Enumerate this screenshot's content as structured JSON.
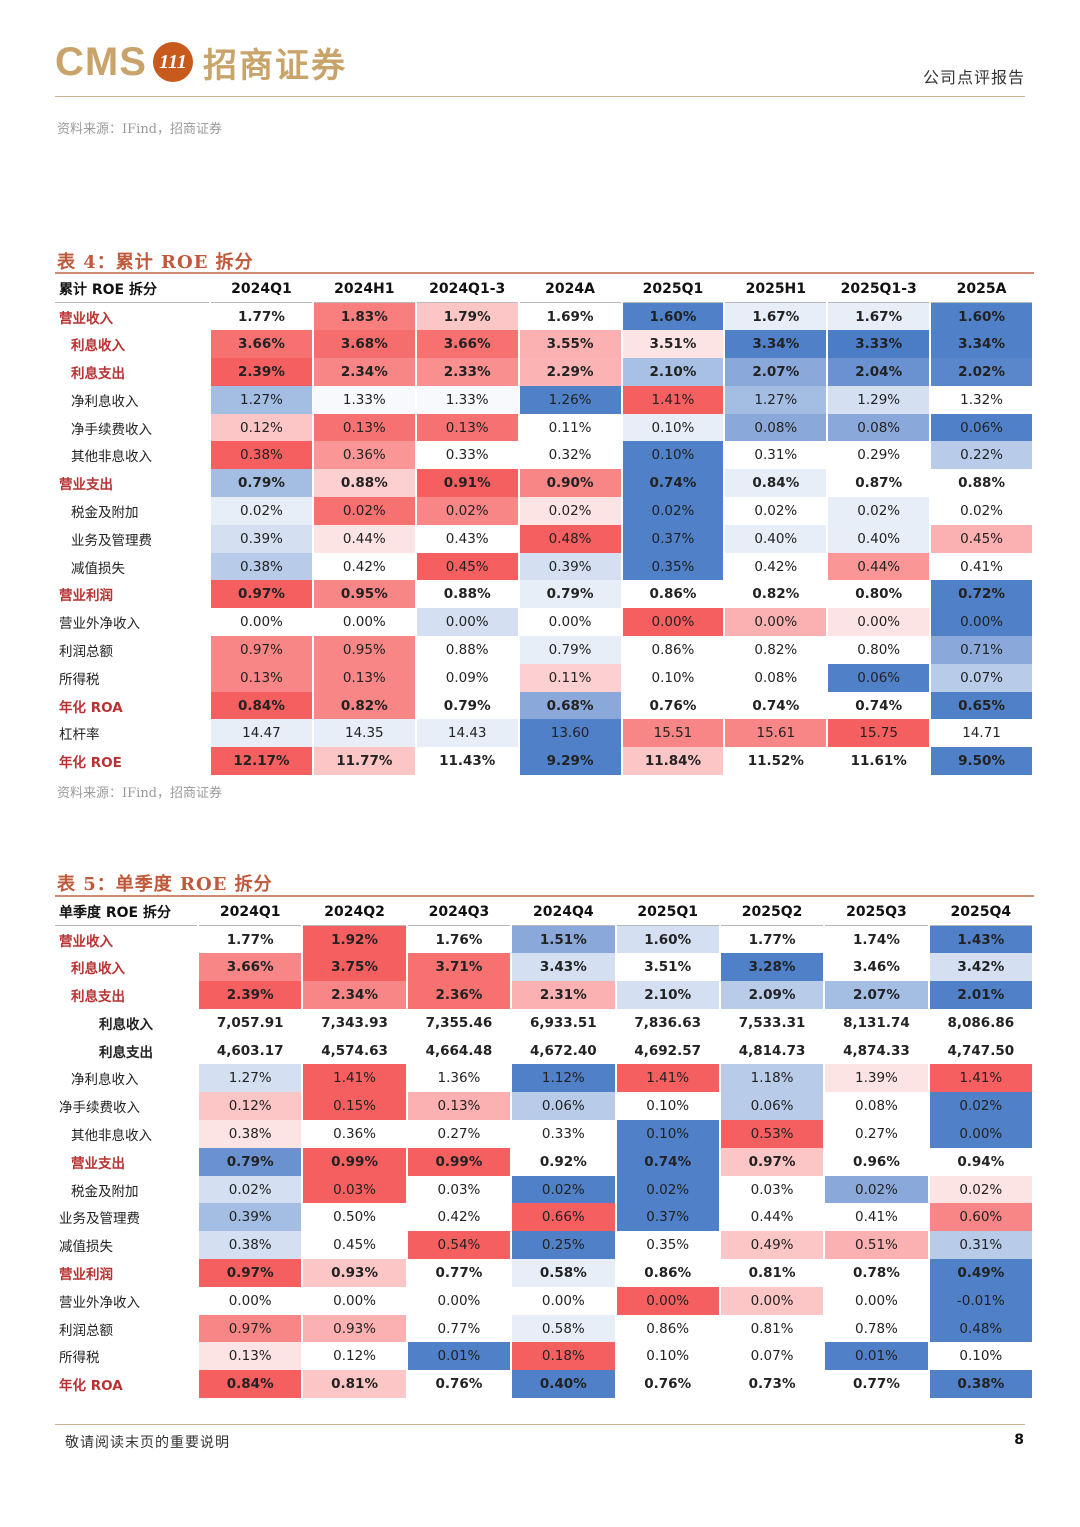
{
  "header": {
    "logo_cms": "CMS",
    "logo_emblem": "111",
    "logo_cn": "招商证券",
    "report_type": "公司点评报告"
  },
  "source_top": "资料来源：IFind，招商证券",
  "table4": {
    "title": "表 4：累计 ROE 拆分",
    "header_label": "累计 ROE 拆分",
    "columns": [
      "2024Q1",
      "2024H1",
      "2024Q1-3",
      "2024A",
      "2025Q1",
      "2025H1",
      "2025Q1-3",
      "2025A"
    ],
    "rows": [
      {
        "label": "营业收入",
        "indent": 0,
        "bold": true,
        "values": [
          "1.77%",
          "1.83%",
          "1.79%",
          "1.69%",
          "1.60%",
          "1.67%",
          "1.67%",
          "1.60%"
        ]
      },
      {
        "label": "利息收入",
        "indent": 1,
        "bold": true,
        "values": [
          "3.66%",
          "3.68%",
          "3.66%",
          "3.55%",
          "3.51%",
          "3.34%",
          "3.33%",
          "3.34%"
        ]
      },
      {
        "label": "利息支出",
        "indent": 1,
        "bold": true,
        "values": [
          "2.39%",
          "2.34%",
          "2.33%",
          "2.29%",
          "2.10%",
          "2.07%",
          "2.04%",
          "2.02%"
        ]
      },
      {
        "label": "净利息收入",
        "indent": 1,
        "bold": false,
        "values": [
          "1.27%",
          "1.33%",
          "1.33%",
          "1.26%",
          "1.41%",
          "1.27%",
          "1.29%",
          "1.32%"
        ]
      },
      {
        "label": "净手续费收入",
        "indent": 1,
        "bold": false,
        "values": [
          "0.12%",
          "0.13%",
          "0.13%",
          "0.11%",
          "0.10%",
          "0.08%",
          "0.08%",
          "0.06%"
        ]
      },
      {
        "label": "其他非息收入",
        "indent": 1,
        "bold": false,
        "values": [
          "0.38%",
          "0.36%",
          "0.33%",
          "0.32%",
          "0.10%",
          "0.31%",
          "0.29%",
          "0.22%"
        ]
      },
      {
        "label": "营业支出",
        "indent": 0,
        "bold": true,
        "values": [
          "0.79%",
          "0.88%",
          "0.91%",
          "0.90%",
          "0.74%",
          "0.84%",
          "0.87%",
          "0.88%"
        ]
      },
      {
        "label": "税金及附加",
        "indent": 1,
        "bold": false,
        "values": [
          "0.02%",
          "0.02%",
          "0.02%",
          "0.02%",
          "0.02%",
          "0.02%",
          "0.02%",
          "0.02%"
        ]
      },
      {
        "label": "业务及管理费",
        "indent": 1,
        "bold": false,
        "values": [
          "0.39%",
          "0.44%",
          "0.43%",
          "0.48%",
          "0.37%",
          "0.40%",
          "0.40%",
          "0.45%"
        ]
      },
      {
        "label": "减值损失",
        "indent": 1,
        "bold": false,
        "values": [
          "0.38%",
          "0.42%",
          "0.45%",
          "0.39%",
          "0.35%",
          "0.42%",
          "0.44%",
          "0.41%"
        ]
      },
      {
        "label": "营业利润",
        "indent": 0,
        "bold": true,
        "values": [
          "0.97%",
          "0.95%",
          "0.88%",
          "0.79%",
          "0.86%",
          "0.82%",
          "0.80%",
          "0.72%"
        ]
      },
      {
        "label": "营业外净收入",
        "indent": 0,
        "bold": false,
        "values": [
          "0.00%",
          "0.00%",
          "0.00%",
          "0.00%",
          "0.00%",
          "0.00%",
          "0.00%",
          "0.00%"
        ]
      },
      {
        "label": "利润总额",
        "indent": 0,
        "bold": false,
        "values": [
          "0.97%",
          "0.95%",
          "0.88%",
          "0.79%",
          "0.86%",
          "0.82%",
          "0.80%",
          "0.71%"
        ]
      },
      {
        "label": "所得税",
        "indent": 0,
        "bold": false,
        "values": [
          "0.13%",
          "0.13%",
          "0.09%",
          "0.11%",
          "0.10%",
          "0.08%",
          "0.06%",
          "0.07%"
        ]
      },
      {
        "label": "年化 ROA",
        "indent": 0,
        "bold": true,
        "values": [
          "0.84%",
          "0.82%",
          "0.79%",
          "0.68%",
          "0.76%",
          "0.74%",
          "0.74%",
          "0.65%"
        ]
      },
      {
        "label": "杠杆率",
        "indent": 0,
        "bold": false,
        "values": [
          "14.47",
          "14.35",
          "14.43",
          "13.60",
          "15.51",
          "15.61",
          "15.75",
          "14.71"
        ]
      },
      {
        "label": "年化 ROE",
        "indent": 0,
        "bold": true,
        "values": [
          "12.17%",
          "11.77%",
          "11.43%",
          "9.29%",
          "11.84%",
          "11.52%",
          "11.61%",
          "9.50%"
        ]
      }
    ],
    "colors": [
      [
        "#ffffff",
        "#f97f7f",
        "#fcc6c6",
        "#ffffff",
        "#4f80c8",
        "#e7eef8",
        "#e7eef8",
        "#4f80c8"
      ],
      [
        "#f77171",
        "#f66d6d",
        "#f77171",
        "#fbb1b1",
        "#fde4e4",
        "#4f80c8",
        "#4b7dc7",
        "#4f80c8"
      ],
      [
        "#f65f5f",
        "#f98686",
        "#f98f8f",
        "#fcb3b3",
        "#a8c0e4",
        "#8aa9da",
        "#6b92d0",
        "#5a86cb"
      ],
      [
        "#a4bde3",
        "#f7f9fd",
        "#f7f9fd",
        "#4f80c8",
        "#f65f5f",
        "#a4bde3",
        "#d4e0f2",
        "#ffffff"
      ],
      [
        "#fcc6c6",
        "#f67272",
        "#f67272",
        "#ffffff",
        "#e7eef8",
        "#8aa9da",
        "#8aa9da",
        "#4f80c8"
      ],
      [
        "#f65f5f",
        "#fa9696",
        "#ffffff",
        "#ffffff",
        "#4f80c8",
        "#ffffff",
        "#ffffff",
        "#b8cbe9"
      ],
      [
        "#a4bde3",
        "#fcd0d0",
        "#f65f5f",
        "#f98686",
        "#4f80c8",
        "#e7eef8",
        "#ffffff",
        "#ffffff"
      ],
      [
        "#e7eef8",
        "#f77171",
        "#f98686",
        "#fde4e4",
        "#4f80c8",
        "#ffffff",
        "#e7eef8",
        "#ffffff"
      ],
      [
        "#d4e0f2",
        "#fde4e4",
        "#ffffff",
        "#f65f5f",
        "#4f80c8",
        "#e7eef8",
        "#e7eef8",
        "#fbb1b1"
      ],
      [
        "#b8cbe9",
        "#ffffff",
        "#f65f5f",
        "#d4e0f2",
        "#4f80c8",
        "#ffffff",
        "#fa9696",
        "#ffffff"
      ],
      [
        "#f65f5f",
        "#f98686",
        "#ffffff",
        "#e7eef8",
        "#ffffff",
        "#ffffff",
        "#ffffff",
        "#4f80c8"
      ],
      [
        "#ffffff",
        "#ffffff",
        "#d4e0f2",
        "#ffffff",
        "#f65f5f",
        "#fbb1b1",
        "#fde4e4",
        "#4f80c8"
      ],
      [
        "#f98686",
        "#f98686",
        "#ffffff",
        "#e7eef8",
        "#ffffff",
        "#ffffff",
        "#ffffff",
        "#8aa9da"
      ],
      [
        "#f98686",
        "#f98686",
        "#ffffff",
        "#fcd0d0",
        "#ffffff",
        "#ffffff",
        "#4f80c8",
        "#b8cbe9"
      ],
      [
        "#f65f5f",
        "#f98686",
        "#ffffff",
        "#8aa9da",
        "#ffffff",
        "#ffffff",
        "#ffffff",
        "#4f80c8"
      ],
      [
        "#e7eef8",
        "#e7eef8",
        "#e7eef8",
        "#4f80c8",
        "#f98686",
        "#f98686",
        "#f65f5f",
        "#ffffff"
      ],
      [
        "#f65f5f",
        "#fcc6c6",
        "#ffffff",
        "#4f80c8",
        "#fcc6c6",
        "#ffffff",
        "#ffffff",
        "#4f80c8"
      ]
    ]
  },
  "source_mid": "资料来源：IFind，招商证券",
  "table5": {
    "title": "表 5：单季度 ROE 拆分",
    "header_label": "单季度 ROE 拆分",
    "columns": [
      "2024Q1",
      "2024Q2",
      "2024Q3",
      "2024Q4",
      "2025Q1",
      "2025Q2",
      "2025Q3",
      "2025Q4"
    ],
    "rows": [
      {
        "label": "营业收入",
        "indent": 0,
        "bold": true,
        "values": [
          "1.77%",
          "1.92%",
          "1.76%",
          "1.51%",
          "1.60%",
          "1.77%",
          "1.74%",
          "1.43%"
        ]
      },
      {
        "label": "利息收入",
        "indent": 1,
        "bold": true,
        "values": [
          "3.66%",
          "3.75%",
          "3.71%",
          "3.43%",
          "3.51%",
          "3.28%",
          "3.46%",
          "3.42%"
        ]
      },
      {
        "label": "利息支出",
        "indent": 1,
        "bold": true,
        "values": [
          "2.39%",
          "2.34%",
          "2.36%",
          "2.31%",
          "2.10%",
          "2.09%",
          "2.07%",
          "2.01%"
        ]
      },
      {
        "label": "利息收入",
        "indent": 2,
        "bold": true,
        "values": [
          "7,057.91",
          "7,343.93",
          "7,355.46",
          "6,933.51",
          "7,836.63",
          "7,533.31",
          "8,131.74",
          "8,086.86"
        ]
      },
      {
        "label": "利息支出",
        "indent": 2,
        "bold": true,
        "values": [
          "4,603.17",
          "4,574.63",
          "4,664.48",
          "4,672.40",
          "4,692.57",
          "4,814.73",
          "4,874.33",
          "4,747.50"
        ]
      },
      {
        "label": "净利息收入",
        "indent": 1,
        "bold": false,
        "values": [
          "1.27%",
          "1.41%",
          "1.36%",
          "1.12%",
          "1.41%",
          "1.18%",
          "1.39%",
          "1.41%"
        ]
      },
      {
        "label": "净手续费收入",
        "indent": 0,
        "bold": false,
        "values": [
          "0.12%",
          "0.15%",
          "0.13%",
          "0.06%",
          "0.10%",
          "0.06%",
          "0.08%",
          "0.02%"
        ]
      },
      {
        "label": "其他非息收入",
        "indent": 1,
        "bold": false,
        "values": [
          "0.38%",
          "0.36%",
          "0.27%",
          "0.33%",
          "0.10%",
          "0.53%",
          "0.27%",
          "0.00%"
        ]
      },
      {
        "label": "营业支出",
        "indent": 1,
        "bold": true,
        "values": [
          "0.79%",
          "0.99%",
          "0.99%",
          "0.92%",
          "0.74%",
          "0.97%",
          "0.96%",
          "0.94%"
        ]
      },
      {
        "label": "税金及附加",
        "indent": 1,
        "bold": false,
        "values": [
          "0.02%",
          "0.03%",
          "0.03%",
          "0.02%",
          "0.02%",
          "0.03%",
          "0.02%",
          "0.02%"
        ]
      },
      {
        "label": "业务及管理费",
        "indent": 0,
        "bold": false,
        "values": [
          "0.39%",
          "0.50%",
          "0.42%",
          "0.66%",
          "0.37%",
          "0.44%",
          "0.41%",
          "0.60%"
        ]
      },
      {
        "label": "减值损失",
        "indent": 0,
        "bold": false,
        "values": [
          "0.38%",
          "0.45%",
          "0.54%",
          "0.25%",
          "0.35%",
          "0.49%",
          "0.51%",
          "0.31%"
        ]
      },
      {
        "label": "营业利润",
        "indent": 0,
        "bold": true,
        "values": [
          "0.97%",
          "0.93%",
          "0.77%",
          "0.58%",
          "0.86%",
          "0.81%",
          "0.78%",
          "0.49%"
        ]
      },
      {
        "label": "营业外净收入",
        "indent": 0,
        "bold": false,
        "values": [
          "0.00%",
          "0.00%",
          "0.00%",
          "0.00%",
          "0.00%",
          "0.00%",
          "0.00%",
          "-0.01%"
        ]
      },
      {
        "label": "利润总额",
        "indent": 0,
        "bold": false,
        "values": [
          "0.97%",
          "0.93%",
          "0.77%",
          "0.58%",
          "0.86%",
          "0.81%",
          "0.78%",
          "0.48%"
        ]
      },
      {
        "label": "所得税",
        "indent": 0,
        "bold": false,
        "values": [
          "0.13%",
          "0.12%",
          "0.01%",
          "0.18%",
          "0.10%",
          "0.07%",
          "0.01%",
          "0.10%"
        ]
      },
      {
        "label": "年化 ROA",
        "indent": 0,
        "bold": true,
        "values": [
          "0.84%",
          "0.81%",
          "0.76%",
          "0.40%",
          "0.76%",
          "0.73%",
          "0.77%",
          "0.38%"
        ]
      }
    ],
    "colors": [
      [
        "#ffffff",
        "#f65f5f",
        "#ffffff",
        "#8aa9da",
        "#d4e0f2",
        "#ffffff",
        "#ffffff",
        "#4f80c8"
      ],
      [
        "#f98686",
        "#f65f5f",
        "#f77171",
        "#d4e0f2",
        "#ffffff",
        "#4f80c8",
        "#ffffff",
        "#d4e0f2"
      ],
      [
        "#f65f5f",
        "#f98686",
        "#f77171",
        "#fbb1b1",
        "#d4e0f2",
        "#b8cbe9",
        "#a4bde3",
        "#4f80c8"
      ],
      [
        "#ffffff",
        "#ffffff",
        "#ffffff",
        "#ffffff",
        "#ffffff",
        "#ffffff",
        "#ffffff",
        "#ffffff"
      ],
      [
        "#ffffff",
        "#ffffff",
        "#ffffff",
        "#ffffff",
        "#ffffff",
        "#ffffff",
        "#ffffff",
        "#ffffff"
      ],
      [
        "#d4e0f2",
        "#f65f5f",
        "#ffffff",
        "#4f80c8",
        "#f65f5f",
        "#b8cbe9",
        "#fde4e4",
        "#f65f5f"
      ],
      [
        "#fcc6c6",
        "#f65f5f",
        "#fbb1b1",
        "#b8cbe9",
        "#ffffff",
        "#b8cbe9",
        "#ffffff",
        "#4f80c8"
      ],
      [
        "#fde4e4",
        "#ffffff",
        "#ffffff",
        "#ffffff",
        "#4f80c8",
        "#f65f5f",
        "#ffffff",
        "#4f80c8"
      ],
      [
        "#6b92d0",
        "#f65f5f",
        "#f65f5f",
        "#ffffff",
        "#4f80c8",
        "#fcc6c6",
        "#ffffff",
        "#ffffff"
      ],
      [
        "#d4e0f2",
        "#f65f5f",
        "#ffffff",
        "#4f80c8",
        "#4f80c8",
        "#ffffff",
        "#8aa9da",
        "#fde4e4"
      ],
      [
        "#a4bde3",
        "#ffffff",
        "#ffffff",
        "#f65f5f",
        "#4f80c8",
        "#ffffff",
        "#ffffff",
        "#f98686"
      ],
      [
        "#d4e0f2",
        "#ffffff",
        "#f65f5f",
        "#4f80c8",
        "#ffffff",
        "#fcc6c6",
        "#fbb1b1",
        "#b8cbe9"
      ],
      [
        "#f65f5f",
        "#fcc6c6",
        "#ffffff",
        "#e7eef8",
        "#ffffff",
        "#ffffff",
        "#ffffff",
        "#4f80c8"
      ],
      [
        "#ffffff",
        "#ffffff",
        "#ffffff",
        "#ffffff",
        "#f65f5f",
        "#fcc6c6",
        "#ffffff",
        "#4f80c8"
      ],
      [
        "#f98686",
        "#fbb1b1",
        "#ffffff",
        "#e7eef8",
        "#ffffff",
        "#ffffff",
        "#ffffff",
        "#4f80c8"
      ],
      [
        "#fde4e4",
        "#ffffff",
        "#4f80c8",
        "#f65f5f",
        "#ffffff",
        "#ffffff",
        "#4f80c8",
        "#ffffff"
      ],
      [
        "#f65f5f",
        "#fcc6c6",
        "#ffffff",
        "#4f80c8",
        "#ffffff",
        "#ffffff",
        "#ffffff",
        "#4f80c8"
      ]
    ]
  },
  "footer": {
    "note": "敬请阅读末页的重要说明",
    "page": "8"
  }
}
